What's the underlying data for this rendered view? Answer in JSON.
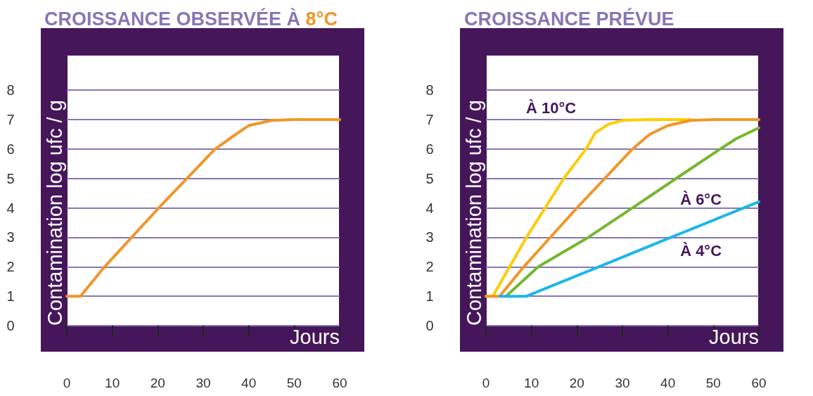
{
  "chart_data": [
    {
      "type": "line",
      "title": "CROISSANCE OBSERVÉE À 8°C",
      "xlabel": "Jours",
      "ylabel": "Contamination log ufc / g",
      "xlim": [
        0,
        60
      ],
      "xticks": [
        0,
        10,
        20,
        30,
        40,
        50,
        60
      ],
      "ylim": [
        0,
        9.2
      ],
      "yticks": [
        0,
        1,
        2,
        3,
        4,
        5,
        6,
        7,
        8
      ],
      "grid": "y",
      "marker": "none",
      "line_style": "solid",
      "series": [
        {
          "color": "#f0962a",
          "x": [
            0,
            3,
            8.3,
            20.2,
            32.6,
            36.9,
            40,
            45,
            50,
            60
          ],
          "values": [
            1,
            1,
            2,
            4,
            6,
            6.47,
            6.8,
            6.97,
            7,
            7
          ]
        }
      ]
    },
    {
      "type": "line",
      "title": "CROISSANCE PRÉVUE",
      "xlabel": "Jours",
      "ylabel": "Contamination log ufc / g",
      "xlim": [
        0,
        60
      ],
      "xticks": [
        0,
        10,
        20,
        30,
        40,
        50,
        60
      ],
      "ylim": [
        0,
        9.2
      ],
      "yticks": [
        0,
        1,
        2,
        3,
        4,
        5,
        6,
        7,
        8
      ],
      "grid": "y",
      "marker": "none",
      "line_style": "solid",
      "series": [
        {
          "name": "À 10°C",
          "color": "#ffcc00",
          "x": [
            0,
            1.5,
            5.2,
            8.9,
            17.1,
            22,
            24,
            27,
            30,
            35,
            45
          ],
          "values": [
            1,
            1,
            2,
            3,
            5,
            6,
            6.55,
            6.85,
            6.97,
            7,
            7
          ]
        },
        {
          "color": "#f0962a",
          "x": [
            0,
            3,
            8.3,
            20,
            32.2,
            36,
            40,
            45,
            50,
            60
          ],
          "values": [
            1,
            1,
            2,
            4,
            6,
            6.5,
            6.8,
            6.97,
            7,
            7
          ]
        },
        {
          "name": "À 6°C",
          "color": "#74b72e",
          "x": [
            4.4,
            11.5,
            22.5,
            32.2,
            41.8,
            51.5,
            55,
            60
          ],
          "values": [
            1,
            2,
            3,
            4,
            5,
            6,
            6.35,
            6.72
          ]
        },
        {
          "name": "À 4°C",
          "color": "#1ab7ea",
          "x": [
            3,
            8.9,
            24.8,
            40.7,
            60
          ],
          "values": [
            1,
            1,
            2,
            3,
            4.21
          ]
        }
      ]
    }
  ]
}
